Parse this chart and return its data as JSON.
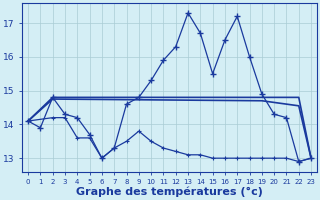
{
  "background_color": "#d4eef5",
  "grid_color": "#aaccd5",
  "line_color": "#1a3a9e",
  "xlabel": "Graphe des températures (°c)",
  "xlabel_fontsize": 8,
  "yticks": [
    13,
    14,
    15,
    16,
    17
  ],
  "xticks": [
    0,
    1,
    2,
    3,
    4,
    5,
    6,
    7,
    8,
    9,
    10,
    11,
    12,
    13,
    14,
    15,
    16,
    17,
    18,
    19,
    20,
    21,
    22,
    23
  ],
  "xlim": [
    -0.5,
    23.5
  ],
  "ylim": [
    12.6,
    17.6
  ],
  "main_x": [
    0,
    1,
    2,
    3,
    4,
    5,
    6,
    7,
    8,
    9,
    10,
    11,
    12,
    13,
    14,
    15,
    16,
    17,
    18,
    19,
    20,
    21,
    22,
    23
  ],
  "main_y": [
    14.1,
    13.9,
    14.8,
    14.3,
    14.2,
    13.7,
    13.0,
    13.3,
    14.6,
    14.8,
    15.3,
    15.9,
    16.3,
    17.3,
    16.7,
    15.5,
    16.5,
    17.2,
    16.0,
    14.9,
    14.3,
    14.2,
    12.9,
    13.0
  ],
  "line2_x": [
    0,
    2,
    19,
    22,
    23
  ],
  "line2_y": [
    14.1,
    14.8,
    14.8,
    14.8,
    13.0
  ],
  "line3_x": [
    0,
    2,
    19,
    22,
    23
  ],
  "line3_y": [
    14.1,
    14.75,
    14.7,
    14.55,
    13.0
  ],
  "line4_x": [
    0,
    2,
    3,
    4,
    5,
    6,
    7,
    8,
    9,
    10,
    11,
    12,
    13,
    14,
    15,
    16,
    17,
    18,
    19,
    20,
    21,
    22,
    23
  ],
  "line4_y": [
    14.1,
    14.2,
    14.2,
    13.6,
    13.6,
    13.0,
    13.3,
    13.5,
    13.8,
    13.5,
    13.3,
    13.2,
    13.1,
    13.1,
    13.0,
    13.0,
    13.0,
    13.0,
    13.0,
    13.0,
    13.0,
    12.9,
    13.0
  ]
}
